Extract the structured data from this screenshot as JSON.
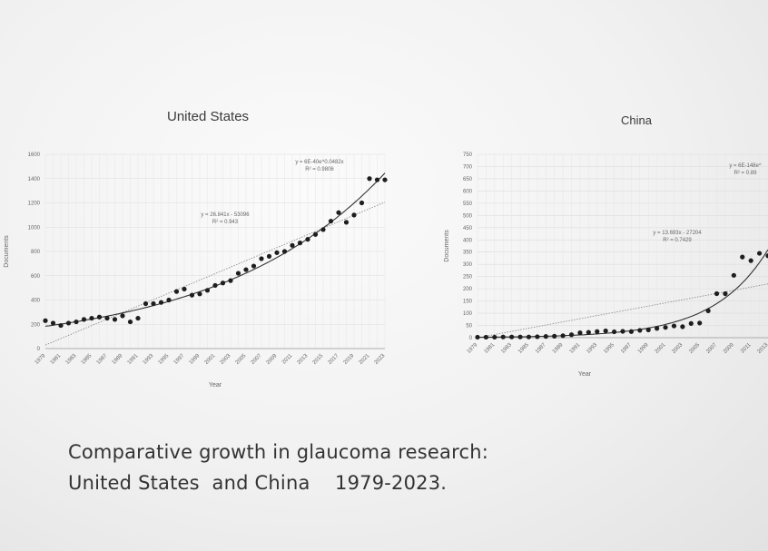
{
  "caption": {
    "line1": "Comparative growth in glaucoma research:",
    "line2": "United States  and China    1979-2023."
  },
  "chart_data": [
    {
      "type": "scatter",
      "title": "United States",
      "xlabel": "Year",
      "ylabel": "Documents",
      "ylim": [
        0,
        1600
      ],
      "yticks": [
        0,
        200,
        400,
        600,
        800,
        1000,
        1200,
        1400,
        1600
      ],
      "xtick_labels": [
        "1979",
        "1981",
        "1983",
        "1985",
        "1987",
        "1989",
        "1991",
        "1993",
        "1995",
        "1997",
        "1999",
        "2001",
        "2003",
        "2005",
        "2007",
        "2009",
        "2011",
        "2013",
        "2015",
        "2017",
        "2019",
        "2021",
        "2023"
      ],
      "x": [
        1979,
        1980,
        1981,
        1982,
        1983,
        1984,
        1985,
        1986,
        1987,
        1988,
        1989,
        1990,
        1991,
        1992,
        1993,
        1994,
        1995,
        1996,
        1997,
        1998,
        1999,
        2000,
        2001,
        2002,
        2003,
        2004,
        2005,
        2006,
        2007,
        2008,
        2009,
        2010,
        2011,
        2012,
        2013,
        2014,
        2015,
        2016,
        2017,
        2018,
        2019,
        2020,
        2021,
        2022,
        2023
      ],
      "y": [
        230,
        210,
        190,
        210,
        220,
        240,
        250,
        260,
        250,
        240,
        270,
        220,
        250,
        370,
        370,
        380,
        400,
        470,
        490,
        440,
        450,
        480,
        520,
        540,
        560,
        620,
        650,
        680,
        740,
        760,
        790,
        800,
        850,
        870,
        900,
        940,
        980,
        1050,
        1120,
        1040,
        1100,
        1200,
        1400,
        1390,
        1390
      ],
      "trendlines": [
        {
          "kind": "linear",
          "equation": "y = 26.841x - 53096",
          "r2": "R² = 0.943",
          "style": "dotted"
        },
        {
          "kind": "exponential",
          "equation": "y = 6E-40e^0.0482x",
          "r2": "R² = 0.9806",
          "style": "solid"
        }
      ],
      "grid": true
    },
    {
      "type": "scatter",
      "title": "China",
      "xlabel": "Year",
      "ylabel": "Documents",
      "ylim": [
        0,
        750
      ],
      "yticks": [
        0,
        50,
        100,
        150,
        200,
        250,
        300,
        350,
        400,
        450,
        500,
        550,
        600,
        650,
        700,
        750
      ],
      "xtick_labels": [
        "1979",
        "1981",
        "1983",
        "1985",
        "1987",
        "1989",
        "1991",
        "1993",
        "1995",
        "1997",
        "1999",
        "2001",
        "2003",
        "2005",
        "2007",
        "2009",
        "2011",
        "2013"
      ],
      "x": [
        1979,
        1980,
        1981,
        1982,
        1983,
        1984,
        1985,
        1986,
        1987,
        1988,
        1989,
        1990,
        1991,
        1992,
        1993,
        1994,
        1995,
        1996,
        1997,
        1998,
        1999,
        2000,
        2001,
        2002,
        2003,
        2004,
        2005,
        2006,
        2007,
        2008,
        2009,
        2010,
        2011,
        2012,
        2013
      ],
      "y": [
        2,
        2,
        2,
        3,
        3,
        3,
        3,
        4,
        5,
        6,
        8,
        12,
        20,
        22,
        25,
        28,
        24,
        26,
        25,
        30,
        32,
        38,
        42,
        48,
        45,
        58,
        60,
        110,
        180,
        180,
        255,
        330,
        315,
        345,
        335
      ],
      "trendlines": [
        {
          "kind": "linear",
          "equation": "y = 13.693x - 27204",
          "r2": "R² = 0.7429",
          "style": "dotted"
        },
        {
          "kind": "exponential",
          "equation": "y = 6E-148e^",
          "r2": "R² = 0.89",
          "style": "solid"
        }
      ],
      "grid": true
    }
  ]
}
